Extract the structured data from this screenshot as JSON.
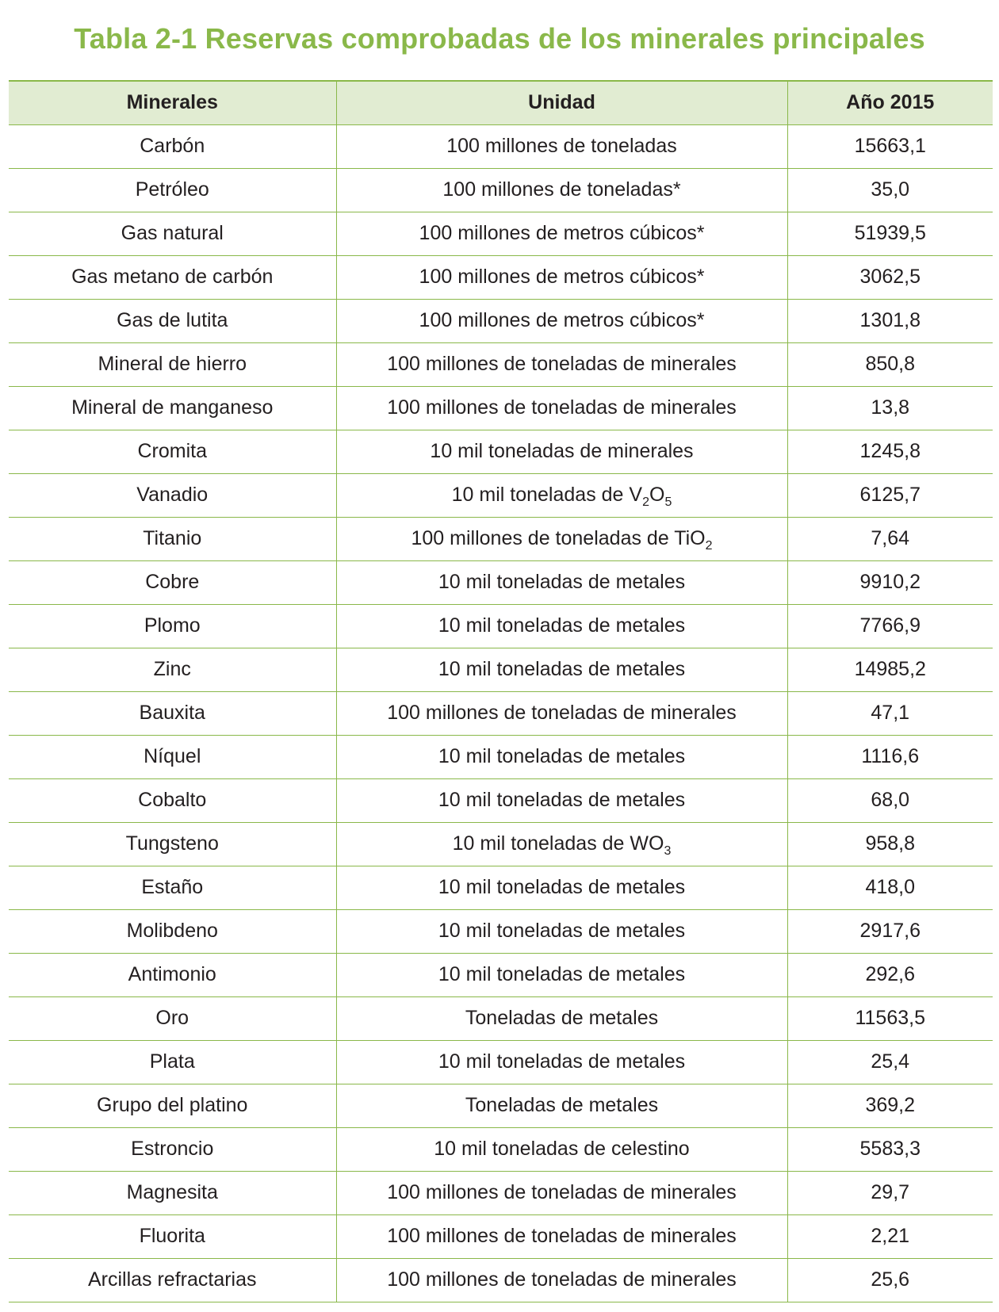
{
  "title": "Tabla 2-1 Reservas comprobadas de los minerales principales",
  "table": {
    "headers": [
      "Minerales",
      "Unidad",
      "Año 2015"
    ],
    "rows": [
      {
        "mineral": "Carbón",
        "unit": "100 millones de toneladas",
        "unit_sub": "",
        "unit_after": "",
        "value": "15663,1"
      },
      {
        "mineral": "Petróleo",
        "unit": "100 millones de toneladas*",
        "unit_sub": "",
        "unit_after": "",
        "value": "35,0"
      },
      {
        "mineral": "Gas natural",
        "unit": "100 millones de metros cúbicos*",
        "unit_sub": "",
        "unit_after": "",
        "value": "51939,5"
      },
      {
        "mineral": "Gas metano de carbón",
        "unit": "100 millones de metros cúbicos*",
        "unit_sub": "",
        "unit_after": "",
        "value": "3062,5"
      },
      {
        "mineral": "Gas de lutita",
        "unit": "100 millones de metros cúbicos*",
        "unit_sub": "",
        "unit_after": "",
        "value": "1301,8"
      },
      {
        "mineral": "Mineral de hierro",
        "unit": "100 millones de toneladas de minerales",
        "unit_sub": "",
        "unit_after": "",
        "value": "850,8"
      },
      {
        "mineral": "Mineral de manganeso",
        "unit": "100 millones de toneladas de minerales",
        "unit_sub": "",
        "unit_after": "",
        "value": "13,8"
      },
      {
        "mineral": "Cromita",
        "unit": "10 mil toneladas de minerales",
        "unit_sub": "",
        "unit_after": "",
        "value": "1245,8"
      },
      {
        "mineral": "Vanadio",
        "unit": "10 mil toneladas de V",
        "unit_sub": "2",
        "unit_after": "O",
        "unit_sub2": "5",
        "value": "6125,7"
      },
      {
        "mineral": "Titanio",
        "unit": "100 millones de toneladas de TiO",
        "unit_sub": "2",
        "unit_after": "",
        "value": "7,64"
      },
      {
        "mineral": "Cobre",
        "unit": "10 mil toneladas de metales",
        "unit_sub": "",
        "unit_after": "",
        "value": "9910,2"
      },
      {
        "mineral": "Plomo",
        "unit": "10 mil toneladas de metales",
        "unit_sub": "",
        "unit_after": "",
        "value": "7766,9"
      },
      {
        "mineral": "Zinc",
        "unit": "10 mil toneladas de metales",
        "unit_sub": "",
        "unit_after": "",
        "value": "14985,2"
      },
      {
        "mineral": "Bauxita",
        "unit": "100 millones de toneladas de minerales",
        "unit_sub": "",
        "unit_after": "",
        "value": "47,1"
      },
      {
        "mineral": "Níquel",
        "unit": "10 mil toneladas de metales",
        "unit_sub": "",
        "unit_after": "",
        "value": "1116,6"
      },
      {
        "mineral": "Cobalto",
        "unit": "10 mil toneladas de metales",
        "unit_sub": "",
        "unit_after": "",
        "value": "68,0"
      },
      {
        "mineral": "Tungsteno",
        "unit": "10 mil toneladas de WO",
        "unit_sub": "3",
        "unit_after": "",
        "value": "958,8"
      },
      {
        "mineral": "Estaño",
        "unit": "10 mil toneladas de metales",
        "unit_sub": "",
        "unit_after": "",
        "value": "418,0"
      },
      {
        "mineral": "Molibdeno",
        "unit": "10 mil toneladas de metales",
        "unit_sub": "",
        "unit_after": "",
        "value": "2917,6"
      },
      {
        "mineral": "Antimonio",
        "unit": "10 mil toneladas de metales",
        "unit_sub": "",
        "unit_after": "",
        "value": "292,6"
      },
      {
        "mineral": "Oro",
        "unit": "Toneladas de metales",
        "unit_sub": "",
        "unit_after": "",
        "value": "11563,5"
      },
      {
        "mineral": "Plata",
        "unit": "10 mil toneladas de metales",
        "unit_sub": "",
        "unit_after": "",
        "value": "25,4"
      },
      {
        "mineral": "Grupo del platino",
        "unit": "Toneladas de metales",
        "unit_sub": "",
        "unit_after": "",
        "value": "369,2"
      },
      {
        "mineral": "Estroncio",
        "unit": "10 mil toneladas de celestino",
        "unit_sub": "",
        "unit_after": "",
        "value": "5583,3"
      },
      {
        "mineral": "Magnesita",
        "unit": "100 millones de toneladas de minerales",
        "unit_sub": "",
        "unit_after": "",
        "value": "29,7"
      },
      {
        "mineral": "Fluorita",
        "unit": "100 millones de toneladas de minerales",
        "unit_sub": "",
        "unit_after": "",
        "value": "2,21"
      },
      {
        "mineral": "Arcillas refractarias",
        "unit": "100 millones de toneladas de minerales",
        "unit_sub": "",
        "unit_after": "",
        "value": "25,6"
      }
    ]
  },
  "colors": {
    "accent": "#8ab84a",
    "header_bg": "#e1ecd2",
    "text": "#231f20"
  }
}
